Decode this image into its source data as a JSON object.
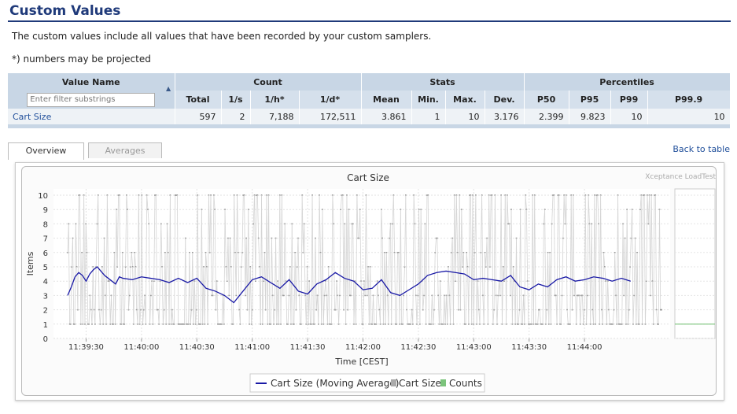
{
  "page": {
    "title": "Custom Values",
    "description": "The custom values include all values that have been recorded by your custom samplers.",
    "note": "*) numbers may be projected"
  },
  "table": {
    "groups": [
      "Value Name",
      "Count",
      "Stats",
      "Percentiles"
    ],
    "filter_placeholder": "Enter filter substrings",
    "columns": [
      "Total",
      "1/s",
      "1/h*",
      "1/d*",
      "Mean",
      "Min.",
      "Max.",
      "Dev.",
      "P50",
      "P95",
      "P99",
      "P99.9"
    ],
    "row": {
      "name": "Cart Size",
      "values": [
        "597",
        "2",
        "7,188",
        "172,511",
        "3.861",
        "1",
        "10",
        "3.176",
        "2.399",
        "9.823",
        "10",
        "10"
      ]
    }
  },
  "tabs": {
    "overview": "Overview",
    "averages": "Averages"
  },
  "back_link": "Back to table",
  "colors": {
    "accent": "#1f3a7a",
    "moving_average": "#1a1aa6",
    "samples": "#aaaaaa",
    "counts": "#7cc47c"
  },
  "chart_data": {
    "type": "line",
    "title": "Cart Size",
    "watermark": "Xceptance LoadTest",
    "xlabel": "Time [CEST]",
    "ylabel": "Items",
    "ylim": [
      0,
      10
    ],
    "yticks": [
      "0",
      "1",
      "2",
      "3",
      "4",
      "5",
      "6",
      "7",
      "8",
      "9",
      "10"
    ],
    "xticks": [
      "11:39:30",
      "11:40:00",
      "11:40:30",
      "11:41:00",
      "11:41:30",
      "11:42:00",
      "11:42:30",
      "11:43:00",
      "11:43:30",
      "11:44:00"
    ],
    "legend": [
      "Cart Size (Moving Average)",
      "Cart Size",
      "Counts"
    ],
    "moving_average": {
      "name": "Cart Size (Moving Average)",
      "x_seconds_from_start": [
        0,
        2,
        4,
        6,
        8,
        10,
        12,
        14,
        16,
        18,
        20,
        22,
        24,
        26,
        28,
        30,
        35,
        40,
        45,
        50,
        55,
        60,
        65,
        70,
        75,
        80,
        85,
        90,
        95,
        100,
        105,
        110,
        115,
        120,
        125,
        130,
        135,
        140,
        145,
        150,
        155,
        160,
        165,
        170,
        175,
        180,
        185,
        190,
        195,
        200,
        205,
        210,
        215,
        220,
        225,
        230,
        235,
        240,
        245,
        250,
        255,
        260,
        265,
        270,
        275,
        280,
        285,
        290,
        295,
        300,
        305
      ],
      "values": [
        3.0,
        3.6,
        4.3,
        4.6,
        4.4,
        4.0,
        4.5,
        4.8,
        5.0,
        4.7,
        4.4,
        4.2,
        4.0,
        3.8,
        4.3,
        4.2,
        4.1,
        4.3,
        4.2,
        4.1,
        3.9,
        4.2,
        3.9,
        4.2,
        3.5,
        3.3,
        3.0,
        2.5,
        3.3,
        4.1,
        4.3,
        3.9,
        3.5,
        4.1,
        3.3,
        3.1,
        3.8,
        4.1,
        4.6,
        4.2,
        4.0,
        3.4,
        3.5,
        4.1,
        3.2,
        3.0,
        3.4,
        3.8,
        4.4,
        4.6,
        4.7,
        4.6,
        4.5,
        4.1,
        4.2,
        4.1,
        4.0,
        4.4,
        3.6,
        3.4,
        3.8,
        3.6,
        4.1,
        4.3,
        4.0,
        4.1,
        4.3,
        4.2,
        4.0,
        4.2,
        4.0
      ]
    },
    "counts": {
      "name": "Counts",
      "value": 2
    }
  }
}
